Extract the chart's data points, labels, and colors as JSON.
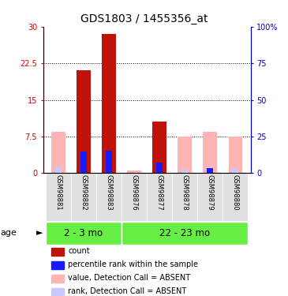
{
  "title": "GDS1803 / 1455356_at",
  "samples": [
    "GSM98881",
    "GSM98882",
    "GSM98883",
    "GSM98876",
    "GSM98877",
    "GSM98878",
    "GSM98879",
    "GSM98880"
  ],
  "groups": [
    "2 - 3 mo",
    "22 - 23 mo"
  ],
  "red_bars": [
    0,
    21,
    28.5,
    0,
    10.5,
    0,
    0,
    0
  ],
  "blue_bars": [
    0,
    14.5,
    15.5,
    0,
    7.0,
    0,
    3.5,
    0
  ],
  "pink_bars": [
    8.5,
    0,
    0,
    0.5,
    0,
    7.5,
    8.5,
    7.5
  ],
  "lavender_bars": [
    4.5,
    0,
    0,
    0.3,
    0,
    2.5,
    4.0,
    3.5
  ],
  "ylim_left": [
    0,
    30
  ],
  "ylim_right": [
    0,
    100
  ],
  "yticks_left": [
    0,
    7.5,
    15,
    22.5,
    30
  ],
  "ytick_labels_left": [
    "0",
    "7.5",
    "15",
    "22.5",
    "30"
  ],
  "yticks_right": [
    0,
    25,
    50,
    75,
    100
  ],
  "ytick_labels_right": [
    "0",
    "25",
    "50",
    "75",
    "100%"
  ],
  "bar_width": 0.55,
  "blue_bar_width": 0.25,
  "red_color": "#c0110a",
  "blue_color": "#1a1aff",
  "pink_color": "#ffb3b3",
  "lavender_color": "#c8c8ff",
  "group_color": "#66ee44",
  "bg_color": "#e0e0e0",
  "plot_bg": "#ffffff",
  "title_color": "#000000",
  "left_axis_color": "#cc0000",
  "right_axis_color": "#0000cc",
  "legend_items": [
    [
      "#c0110a",
      "count"
    ],
    [
      "#1a1aff",
      "percentile rank within the sample"
    ],
    [
      "#ffb3b3",
      "value, Detection Call = ABSENT"
    ],
    [
      "#c8c8ff",
      "rank, Detection Call = ABSENT"
    ]
  ]
}
